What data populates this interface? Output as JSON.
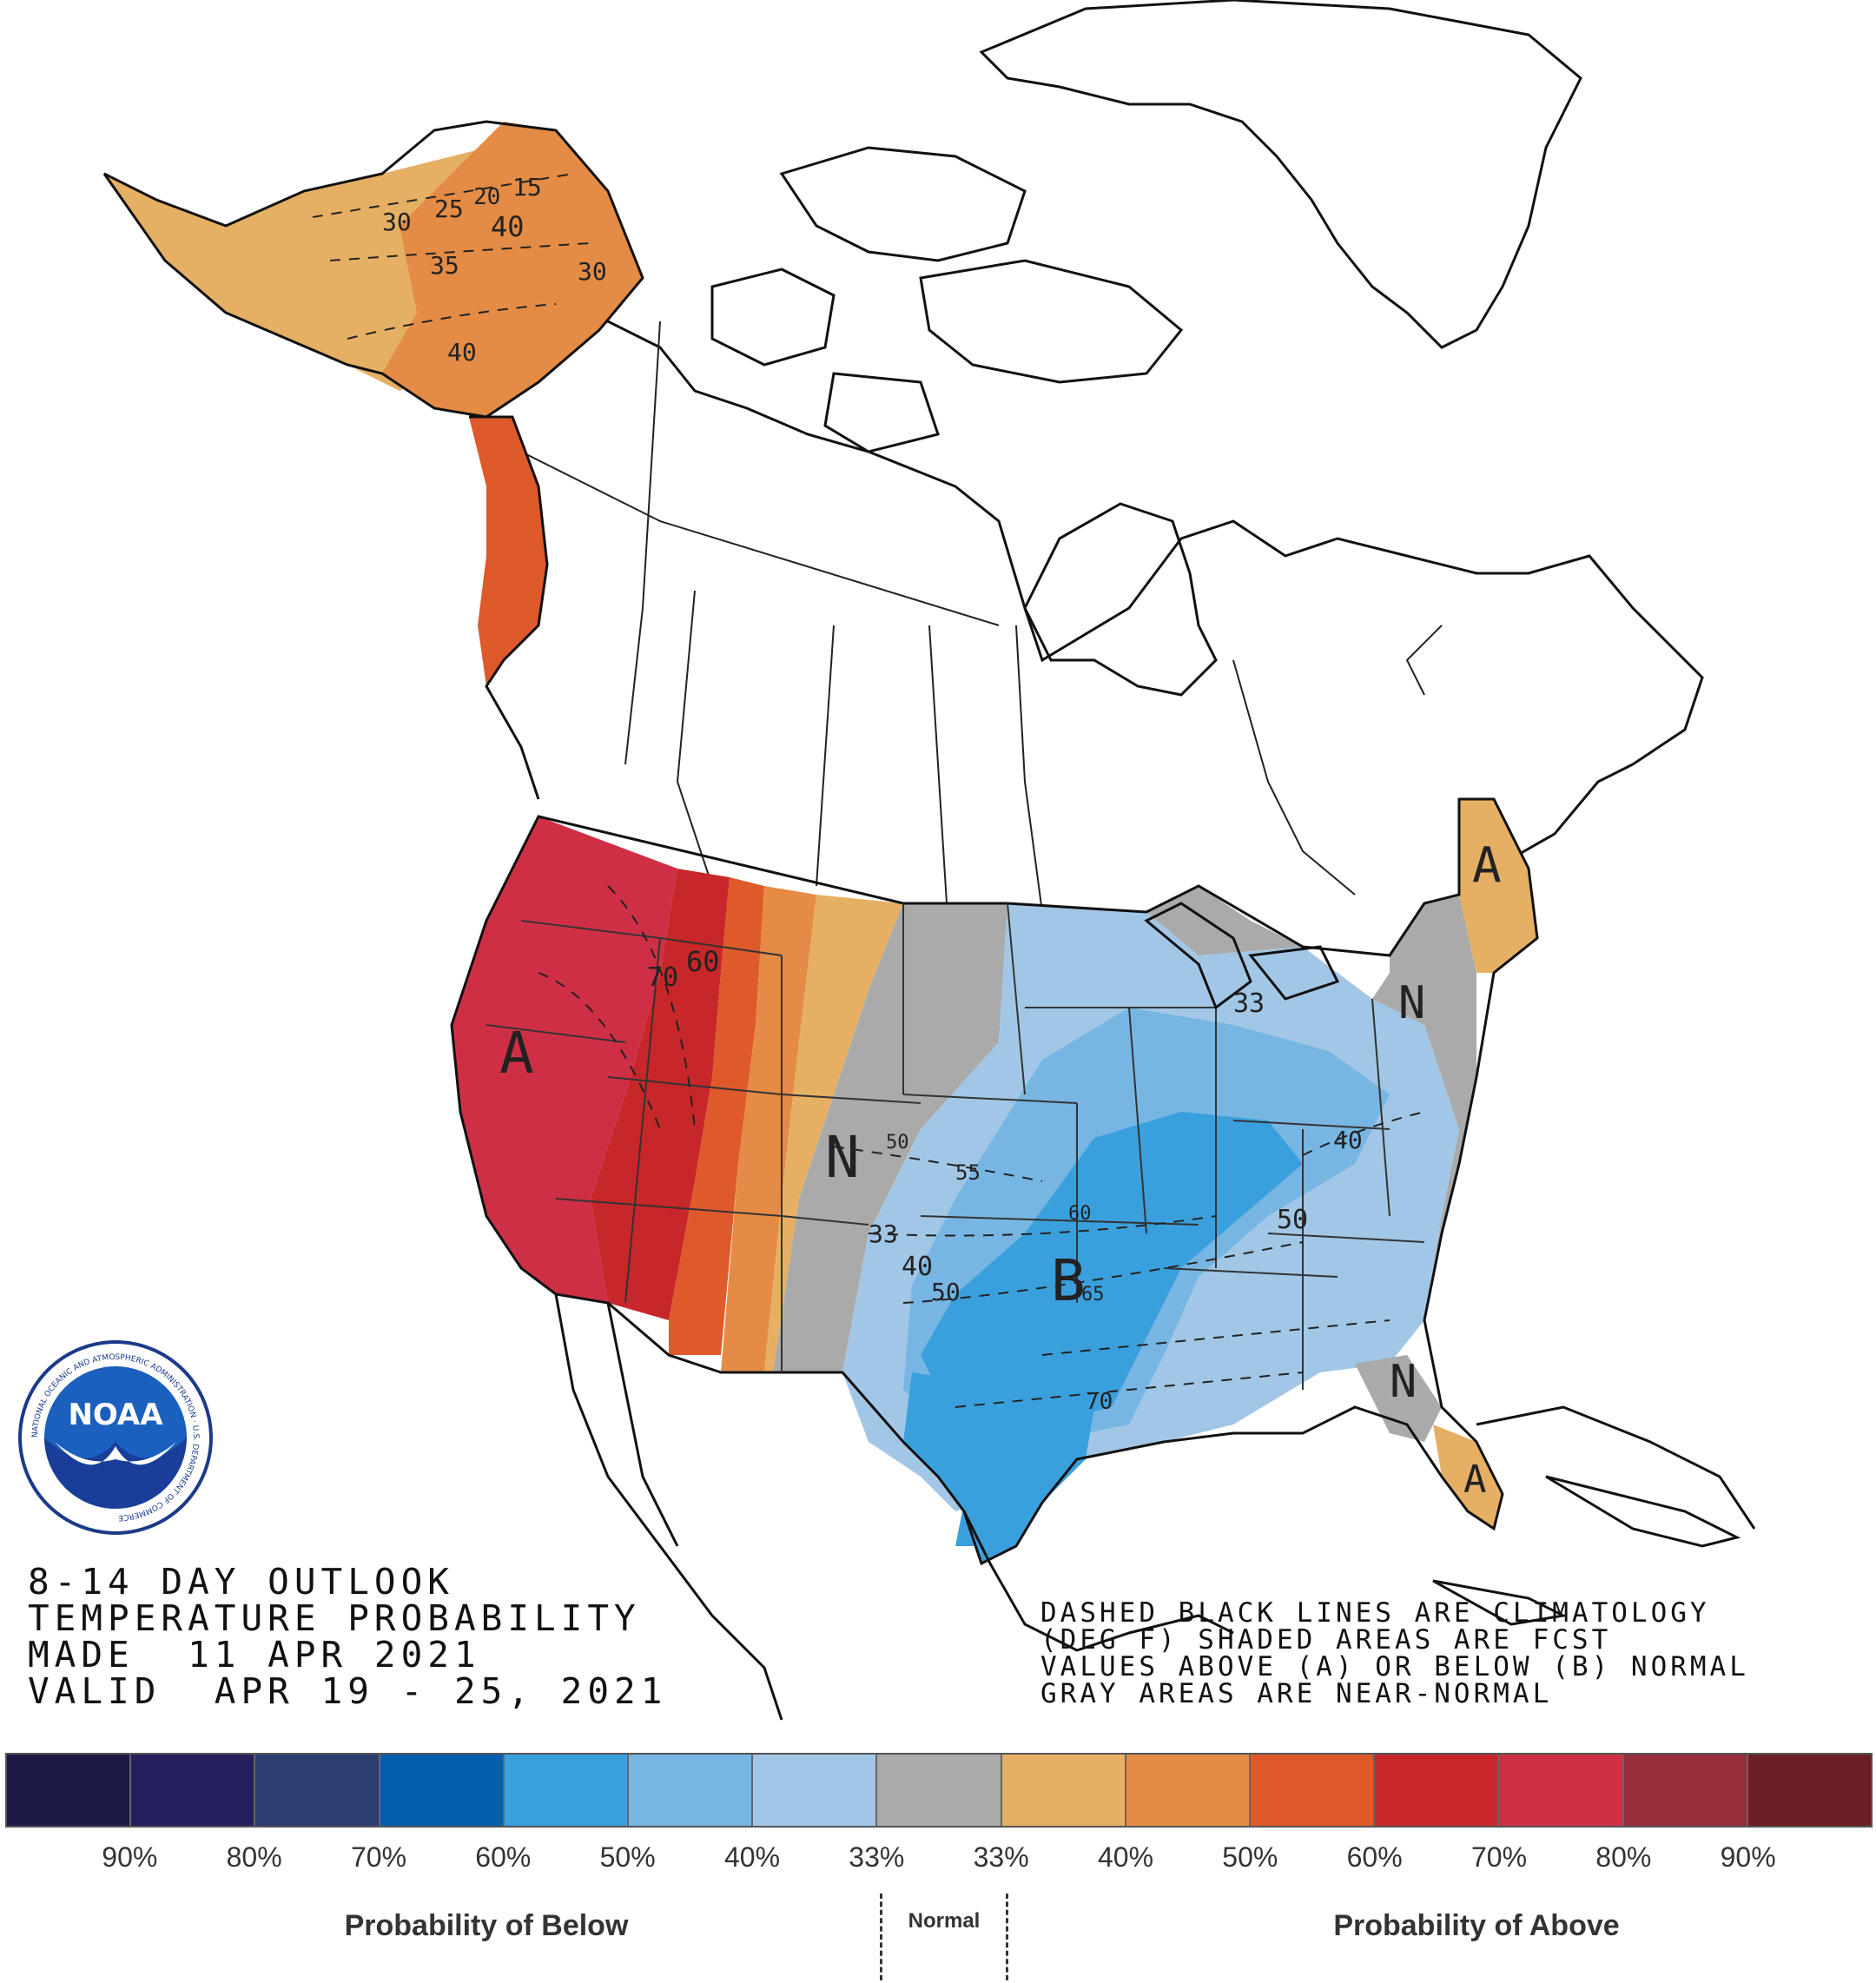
{
  "title_block": {
    "line1": "8-14 DAY OUTLOOK",
    "line2": "TEMPERATURE PROBABILITY",
    "line3": "MADE  11 APR 2021",
    "line4": "VALID  APR 19 - 25, 2021"
  },
  "notes": {
    "line1": "DASHED BLACK LINES ARE CLIMATOLOGY",
    "line2": "(DEG F) SHADED AREAS ARE FCST",
    "line3": "VALUES ABOVE (A) OR BELOW (B) NORMAL",
    "line4": "GRAY AREAS ARE NEAR-NORMAL"
  },
  "logo": {
    "text": "NOAA",
    "ring_text": "NATIONAL OCEANIC AND ATMOSPHERIC ADMINISTRATION · U.S. DEPARTMENT OF COMMERCE"
  },
  "map_labels": {
    "alaska": [
      "15",
      "20",
      "25",
      "30",
      "40",
      "35",
      "30",
      "40"
    ],
    "west": [
      "70",
      "60",
      "A"
    ],
    "plains": [
      "N",
      "50",
      "55",
      "33",
      "40",
      "50"
    ],
    "central": [
      "60",
      "B",
      "65",
      "70"
    ],
    "east": [
      "33",
      "N",
      "40",
      "50",
      "N",
      "A",
      "A"
    ]
  },
  "legend": {
    "colors": [
      "#1c1a45",
      "#261f5e",
      "#2c3d6f",
      "#055fad",
      "#3aa0dd",
      "#77b6e3",
      "#a2c7e6",
      "#aaaaaa",
      "#e6b064",
      "#e48c46",
      "#de5a2b",
      "#c7272a",
      "#cf2f45",
      "#952d3a",
      "#6b1f24"
    ],
    "tick_labels": [
      "90%",
      "80%",
      "70%",
      "60%",
      "50%",
      "40%",
      "33%",
      "33%",
      "40%",
      "50%",
      "60%",
      "70%",
      "80%",
      "90%"
    ],
    "below_label": "Probability of Below",
    "normal_label": "Normal",
    "above_label": "Probability of Above"
  }
}
